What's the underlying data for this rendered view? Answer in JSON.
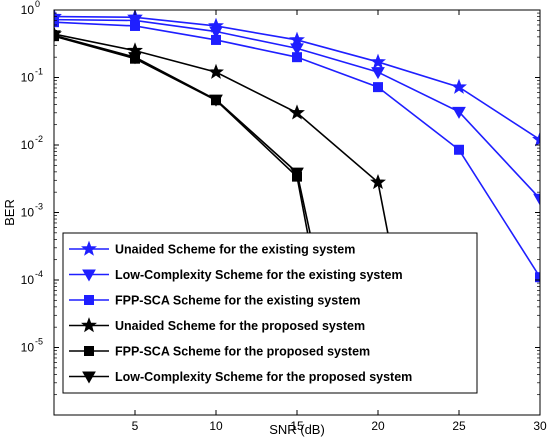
{
  "chart_data": {
    "type": "line",
    "title": "",
    "xlabel": "SNR (dB)",
    "ylabel": "BER",
    "xlim": [
      0,
      30
    ],
    "ylim": [
      1e-06,
      1
    ],
    "yscale": "log",
    "grid": false,
    "legend_position": "bottom-left",
    "x_ticks": [
      5,
      10,
      15,
      20,
      25,
      30
    ],
    "x_tick_labels": [
      "5",
      "10",
      "15",
      "20",
      "25",
      "30"
    ],
    "y_tick_exponents": [
      -6,
      -5,
      -4,
      -3,
      -2,
      -1,
      0
    ],
    "series": [
      {
        "name": "Unaided Scheme for the existing system",
        "color": "#1f1fff",
        "marker": "star",
        "x": [
          0,
          5,
          10,
          15,
          20,
          25,
          30
        ],
        "y": [
          0.8,
          0.78,
          0.58,
          0.36,
          0.17,
          0.072,
          0.012
        ]
      },
      {
        "name": "Low-Complexity Scheme for the existing system",
        "color": "#1f1fff",
        "marker": "triangle-down",
        "x": [
          0,
          5,
          10,
          15,
          20,
          25,
          30
        ],
        "y": [
          0.72,
          0.7,
          0.48,
          0.27,
          0.12,
          0.031,
          0.0016
        ]
      },
      {
        "name": "FPP-SCA Scheme for the existing system",
        "color": "#1f1fff",
        "marker": "square",
        "x": [
          0,
          5,
          10,
          15,
          20,
          25,
          30
        ],
        "y": [
          0.66,
          0.58,
          0.36,
          0.2,
          0.072,
          0.0085,
          0.00011
        ]
      },
      {
        "name": "Unaided Scheme for the proposed system",
        "color": "#000000",
        "marker": "star",
        "x": [
          0,
          5,
          10,
          15,
          20,
          22.4
        ],
        "y": [
          0.44,
          0.25,
          0.12,
          0.03,
          0.0028,
          3e-06
        ]
      },
      {
        "name": "FPP-SCA Scheme for the proposed system",
        "color": "#000000",
        "marker": "square",
        "x": [
          0,
          5,
          10,
          15,
          17.4
        ],
        "y": [
          0.41,
          0.19,
          0.046,
          0.0034,
          3e-06
        ]
      },
      {
        "name": "Low-Complexity Scheme for the proposed system",
        "color": "#000000",
        "marker": "triangle-down",
        "x": [
          0,
          5,
          10,
          15,
          17.8
        ],
        "y": [
          0.42,
          0.2,
          0.047,
          0.0039,
          3e-06
        ]
      }
    ]
  }
}
